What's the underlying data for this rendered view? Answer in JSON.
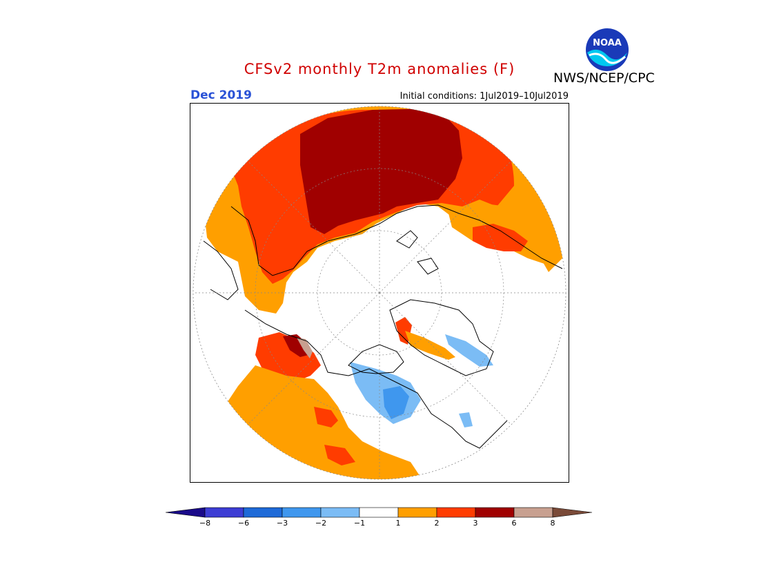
{
  "header": {
    "title": "CFSv2 monthly T2m anomalies (F)",
    "month": "Dec 2019",
    "initial_conditions": "Initial conditions: 1Jul2019–10Jul2019",
    "agency": "NWS/NCEP/CPC",
    "logo_text": "NOAA"
  },
  "colorbar": {
    "colors": [
      "#1a0a8a",
      "#3d3dd4",
      "#1e6ad8",
      "#3f97ee",
      "#7bbcf5",
      "#ffffff",
      "#ff9f00",
      "#ff3c00",
      "#a00000",
      "#c8a090",
      "#7a4a38"
    ],
    "tick_labels": [
      "−8",
      "−6",
      "−3",
      "−2",
      "−1",
      "1",
      "2",
      "3",
      "6",
      "8"
    ]
  }
}
